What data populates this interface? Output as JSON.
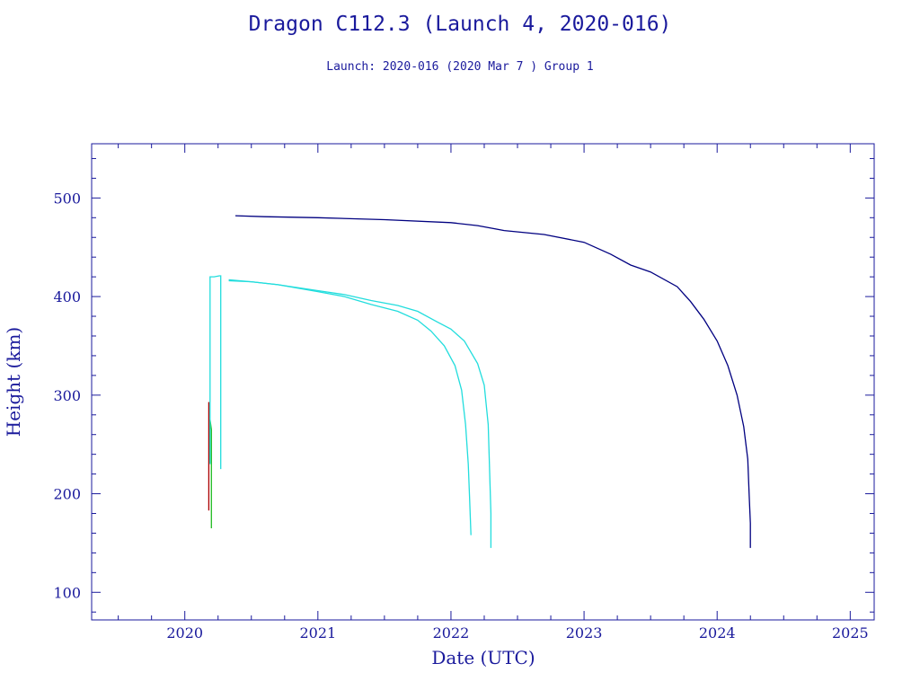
{
  "header": {
    "title": "Dragon C112.3 (Launch 4, 2020-016)",
    "subtitle": "Launch: 2020-016  (2020 Mar  7 )  Group 1"
  },
  "chart_data": {
    "type": "line",
    "title": "Dragon C112.3 (Launch 4, 2020-016)",
    "subtitle": "Launch: 2020-016  (2020 Mar  7 )  Group 1",
    "xlabel": "Date (UTC)",
    "ylabel": "Height (km)",
    "xlim": [
      2019.3,
      2025.18
    ],
    "ylim": [
      72,
      555
    ],
    "x_ticks": [
      2020,
      2021,
      2022,
      2023,
      2024,
      2025
    ],
    "y_ticks": [
      100,
      200,
      300,
      400,
      500
    ],
    "grid": false,
    "colors": {
      "axis": "#1a1a9c",
      "navy": "#000080",
      "cyan": "#22dddd",
      "green": "#22bb22",
      "red": "#aa0000"
    },
    "series": [
      {
        "color": "#aa0000",
        "points": [
          [
            2020.18,
            183
          ],
          [
            2020.18,
            293
          ]
        ]
      },
      {
        "color": "#22bb22",
        "points": [
          [
            2020.19,
            231
          ],
          [
            2020.19,
            275
          ],
          [
            2020.2,
            265
          ],
          [
            2020.2,
            238
          ],
          [
            2020.2,
            165
          ]
        ]
      },
      {
        "color": "#22dddd",
        "points": [
          [
            2020.19,
            230
          ],
          [
            2020.19,
            420
          ],
          [
            2020.22,
            420
          ],
          [
            2020.26,
            421
          ],
          [
            2020.27,
            421
          ],
          [
            2020.27,
            225
          ]
        ]
      },
      {
        "color": "#22dddd",
        "points": [
          [
            2020.33,
            417
          ],
          [
            2020.5,
            415
          ],
          [
            2020.7,
            412
          ],
          [
            2021.0,
            405
          ],
          [
            2021.2,
            400
          ],
          [
            2021.4,
            392
          ],
          [
            2021.6,
            385
          ],
          [
            2021.75,
            376
          ],
          [
            2021.85,
            365
          ],
          [
            2021.95,
            350
          ],
          [
            2022.03,
            330
          ],
          [
            2022.08,
            305
          ],
          [
            2022.11,
            270
          ],
          [
            2022.13,
            230
          ],
          [
            2022.14,
            195
          ],
          [
            2022.15,
            158
          ]
        ]
      },
      {
        "color": "#22dddd",
        "points": [
          [
            2020.33,
            416
          ],
          [
            2020.5,
            415
          ],
          [
            2020.7,
            412
          ],
          [
            2021.0,
            406
          ],
          [
            2021.2,
            402
          ],
          [
            2021.4,
            396
          ],
          [
            2021.6,
            391
          ],
          [
            2021.75,
            385
          ],
          [
            2021.9,
            374
          ],
          [
            2022.0,
            367
          ],
          [
            2022.1,
            355
          ],
          [
            2022.2,
            332
          ],
          [
            2022.25,
            310
          ],
          [
            2022.28,
            270
          ],
          [
            2022.29,
            225
          ],
          [
            2022.3,
            180
          ],
          [
            2022.3,
            145
          ]
        ]
      },
      {
        "color": "#000080",
        "points": [
          [
            2020.38,
            482
          ],
          [
            2020.6,
            481
          ],
          [
            2021.0,
            480
          ],
          [
            2021.5,
            478
          ],
          [
            2022.0,
            475
          ],
          [
            2022.2,
            472
          ],
          [
            2022.4,
            467
          ],
          [
            2022.7,
            463
          ],
          [
            2023.0,
            455
          ],
          [
            2023.2,
            443
          ],
          [
            2023.35,
            432
          ],
          [
            2023.5,
            425
          ],
          [
            2023.7,
            410
          ],
          [
            2023.8,
            395
          ],
          [
            2023.9,
            377
          ],
          [
            2024.0,
            355
          ],
          [
            2024.08,
            330
          ],
          [
            2024.15,
            300
          ],
          [
            2024.2,
            268
          ],
          [
            2024.23,
            235
          ],
          [
            2024.24,
            200
          ],
          [
            2024.25,
            170
          ],
          [
            2024.25,
            145
          ]
        ]
      }
    ]
  }
}
